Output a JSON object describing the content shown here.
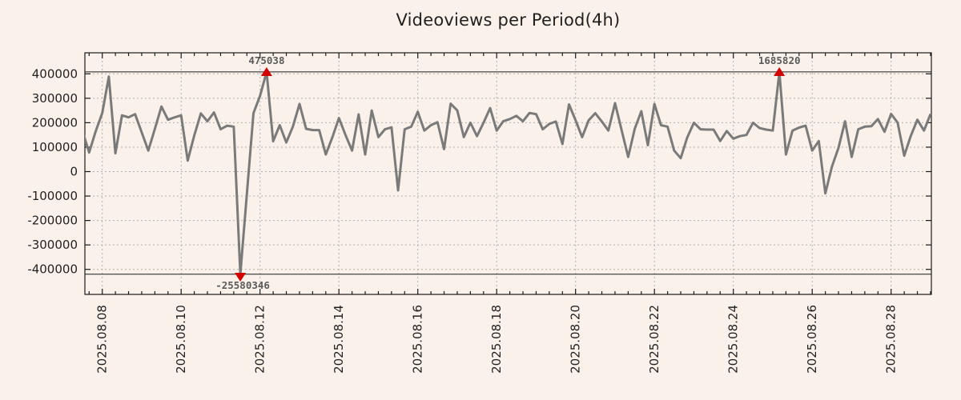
{
  "chart_data": {
    "type": "line",
    "title": "Videoviews per Period(4h)",
    "series_name": "Videoviews",
    "period_hours": 4,
    "grid": true,
    "x_unit": "hours since 2025-08-08 00:00",
    "x_axis_range_hours": [
      -10.6,
      504.6
    ],
    "y_axis_range": [
      -503000,
      487000
    ],
    "display_clip": {
      "max": 408000,
      "min": -420000
    },
    "y_ticks": [
      400000,
      300000,
      200000,
      100000,
      0,
      -100000,
      -200000,
      -300000,
      -400000
    ],
    "y_tick_labels": [
      "400000",
      "300000",
      "200000",
      "100000",
      "0",
      "-100000",
      "-200000",
      "-300000",
      "-400000"
    ],
    "x_major_ticks_hours": [
      0,
      48,
      96,
      144,
      192,
      240,
      288,
      336,
      384,
      432,
      480
    ],
    "x_tick_labels": [
      "2025.08.08",
      "2025.08.10",
      "2025.08.12",
      "2025.08.14",
      "2025.08.16",
      "2025.08.18",
      "2025.08.20",
      "2025.08.22",
      "2025.08.24",
      "2025.08.26",
      "2025.08.28"
    ],
    "x_minor_step_hours": 8,
    "x": [
      -12,
      -8,
      -4,
      0,
      4,
      8,
      12,
      16,
      20,
      24,
      28,
      32,
      36,
      40,
      44,
      48,
      52,
      56,
      60,
      64,
      68,
      72,
      76,
      80,
      84,
      88,
      92,
      96,
      100,
      104,
      108,
      112,
      116,
      120,
      124,
      128,
      132,
      136,
      140,
      144,
      148,
      152,
      156,
      160,
      164,
      168,
      172,
      176,
      180,
      184,
      188,
      192,
      196,
      200,
      204,
      208,
      212,
      216,
      220,
      224,
      228,
      232,
      236,
      240,
      244,
      248,
      252,
      256,
      260,
      264,
      268,
      272,
      276,
      280,
      284,
      288,
      292,
      296,
      300,
      304,
      308,
      312,
      316,
      320,
      324,
      328,
      332,
      336,
      340,
      344,
      348,
      352,
      356,
      360,
      364,
      368,
      372,
      376,
      380,
      384,
      388,
      392,
      396,
      400,
      404,
      408,
      412,
      416,
      420,
      424,
      428,
      432,
      436,
      440,
      444,
      448,
      452,
      456,
      460,
      464,
      468,
      472,
      476,
      480,
      484,
      488,
      492,
      496,
      500,
      504
    ],
    "values": [
      165000,
      78000,
      165000,
      240000,
      389000,
      75000,
      230000,
      222000,
      235000,
      160000,
      86000,
      175000,
      266000,
      212000,
      222000,
      230000,
      45000,
      148000,
      238000,
      206000,
      242000,
      173000,
      188000,
      184000,
      -25580346,
      -90000,
      239000,
      310000,
      475038,
      124000,
      190000,
      119000,
      184000,
      277000,
      175000,
      170000,
      170000,
      70000,
      140000,
      219000,
      150000,
      86000,
      234000,
      70000,
      250000,
      141000,
      173000,
      181000,
      -77000,
      173000,
      184000,
      245000,
      168000,
      190000,
      202000,
      92000,
      278000,
      250000,
      141000,
      200000,
      145000,
      200000,
      260000,
      168000,
      206000,
      215000,
      228000,
      206000,
      240000,
      235000,
      173000,
      195000,
      205000,
      113000,
      275000,
      210000,
      141000,
      210000,
      239000,
      205000,
      168000,
      280000,
      170000,
      60000,
      175000,
      247000,
      108000,
      277000,
      190000,
      184000,
      86000,
      55000,
      140000,
      200000,
      173000,
      172000,
      172000,
      125000,
      166000,
      135000,
      145000,
      150000,
      200000,
      178000,
      172000,
      168000,
      1685820,
      70000,
      168000,
      180000,
      188000,
      86000,
      125000,
      -89000,
      20000,
      97000,
      206000,
      60000,
      173000,
      184000,
      186000,
      215000,
      163000,
      236000,
      200000,
      65000,
      146000,
      212000,
      168000,
      236000
    ],
    "annotations": [
      {
        "text": "475038",
        "t": 100,
        "kind": "max"
      },
      {
        "text": "1685820",
        "t": 412,
        "kind": "max"
      },
      {
        "text": "-25580346",
        "t": 84,
        "kind": "min"
      }
    ],
    "colors": {
      "background": "#faf2ea",
      "line": "#7a7a7a",
      "marker": "#d40000",
      "grid": "#b3aeaa",
      "frame": "#1a1a1a",
      "clip_line": "#1a1a1a",
      "annotation_text": "#5a5a5a",
      "tick_text": "#221f1f",
      "title_text": "#221f1f"
    }
  }
}
